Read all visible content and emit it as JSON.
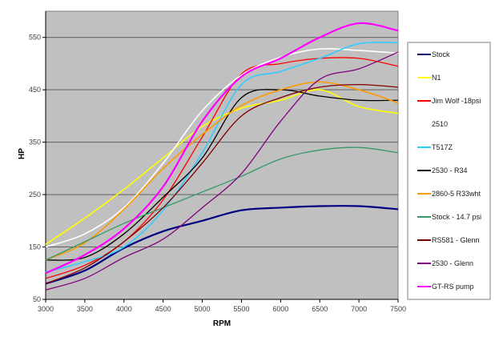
{
  "chart_data": {
    "type": "line",
    "title": "",
    "xlabel": "RPM",
    "ylabel": "HP",
    "xlim": [
      3000,
      7500
    ],
    "ylim": [
      50,
      600
    ],
    "x_ticks": [
      3000,
      3500,
      4000,
      4500,
      5000,
      5500,
      6000,
      6500,
      7000,
      7500
    ],
    "y_ticks": [
      50,
      150,
      250,
      350,
      450,
      550
    ],
    "grid": "horizontal",
    "legend_position": "right",
    "plot_background": "#c0c0c0",
    "x": [
      3000,
      3500,
      4000,
      4500,
      5000,
      5500,
      6000,
      6500,
      7000,
      7500
    ],
    "series": [
      {
        "name": "Stock",
        "color": "#000080",
        "width": 2.2,
        "values": [
          80,
          105,
          148,
          180,
          200,
          220,
          225,
          228,
          228,
          222
        ]
      },
      {
        "name": "N1",
        "color": "#ffff00",
        "width": 1.6,
        "values": [
          155,
          205,
          260,
          320,
          380,
          415,
          430,
          450,
          418,
          405
        ]
      },
      {
        "name": "Jim Wolf -18psi",
        "color": "#ff0000",
        "width": 1.3,
        "values": [
          90,
          115,
          160,
          240,
          360,
          480,
          500,
          510,
          510,
          495
        ]
      },
      {
        "name": "2510",
        "color": "#ffffff",
        "width": 1.6,
        "values": [
          150,
          175,
          225,
          310,
          410,
          478,
          512,
          528,
          525,
          520
        ]
      },
      {
        "name": "T517Z",
        "color": "#33ccff",
        "width": 1.6,
        "values": [
          102,
          122,
          150,
          220,
          330,
          460,
          485,
          510,
          538,
          540
        ]
      },
      {
        "name": "2530 - R34",
        "color": "#000000",
        "width": 1.3,
        "values": [
          125,
          130,
          175,
          245,
          320,
          435,
          450,
          438,
          430,
          430
        ]
      },
      {
        "name": "2860-5 R33wht",
        "color": "#ff9900",
        "width": 1.6,
        "values": [
          125,
          158,
          222,
          300,
          365,
          420,
          450,
          465,
          450,
          425
        ]
      },
      {
        "name": "Stock - 14.7 psi",
        "color": "#339966",
        "width": 1.3,
        "values": [
          125,
          160,
          195,
          225,
          255,
          285,
          318,
          335,
          340,
          330
        ]
      },
      {
        "name": "RS581 - Glenn",
        "color": "#800000",
        "width": 1.3,
        "values": [
          80,
          110,
          160,
          225,
          310,
          400,
          435,
          455,
          460,
          455
        ]
      },
      {
        "name": "2530 - Glenn",
        "color": "#800080",
        "width": 1.3,
        "values": [
          68,
          90,
          130,
          165,
          225,
          290,
          390,
          470,
          490,
          522
        ]
      },
      {
        "name": "GT-RS pump",
        "color": "#ff00ff",
        "width": 2.2,
        "values": [
          100,
          135,
          185,
          265,
          390,
          475,
          510,
          550,
          577,
          563
        ]
      }
    ]
  }
}
